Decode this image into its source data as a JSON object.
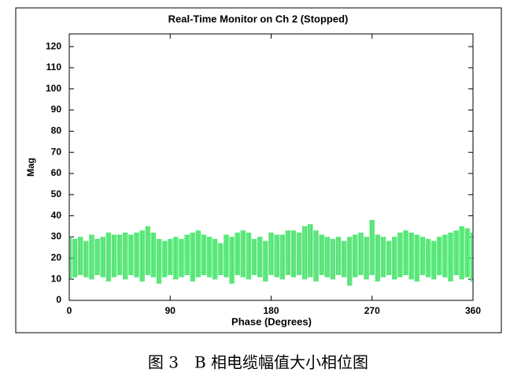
{
  "chart_data": {
    "type": "phase-range",
    "title": "Real-Time Monitor on Ch 2 (Stopped)",
    "x_label": "Phase (Degrees)",
    "y_label": "Mag",
    "caption": "图 3　B 相电缆幅值大小相位图",
    "color": "#33ee66",
    "xlim": [
      0,
      360
    ],
    "xticks": [
      0,
      90,
      180,
      270,
      360
    ],
    "ylim": [
      0,
      126
    ],
    "yticks": [
      0,
      10,
      20,
      30,
      40,
      50,
      60,
      70,
      80,
      90,
      100,
      110,
      120
    ],
    "x": [
      0,
      5,
      10,
      15,
      20,
      25,
      30,
      35,
      40,
      45,
      50,
      55,
      60,
      65,
      70,
      75,
      80,
      85,
      90,
      95,
      100,
      105,
      110,
      115,
      120,
      125,
      130,
      135,
      140,
      145,
      150,
      155,
      160,
      165,
      170,
      175,
      180,
      185,
      190,
      195,
      200,
      205,
      210,
      215,
      220,
      225,
      230,
      235,
      240,
      245,
      250,
      255,
      260,
      265,
      270,
      275,
      280,
      285,
      290,
      295,
      300,
      305,
      310,
      315,
      320,
      325,
      330,
      335,
      340,
      345,
      350,
      355,
      360
    ],
    "low": [
      10,
      11,
      12,
      11,
      10,
      12,
      11,
      9,
      11,
      12,
      10,
      12,
      11,
      9,
      12,
      11,
      8,
      11,
      12,
      10,
      11,
      12,
      9,
      11,
      12,
      11,
      10,
      12,
      11,
      8,
      12,
      11,
      10,
      12,
      11,
      9,
      12,
      11,
      10,
      12,
      11,
      12,
      10,
      11,
      9,
      12,
      11,
      10,
      12,
      11,
      7,
      11,
      12,
      10,
      12,
      9,
      11,
      12,
      10,
      11,
      12,
      10,
      9,
      12,
      11,
      10,
      12,
      11,
      9,
      12,
      10,
      11,
      9
    ],
    "high": [
      30,
      29,
      30,
      28,
      31,
      29,
      30,
      32,
      31,
      31,
      32,
      31,
      32,
      33,
      35,
      32,
      29,
      28,
      29,
      30,
      29,
      31,
      32,
      33,
      31,
      30,
      29,
      27,
      31,
      30,
      32,
      33,
      32,
      29,
      30,
      28,
      32,
      31,
      31,
      33,
      33,
      32,
      35,
      36,
      33,
      31,
      30,
      29,
      30,
      28,
      30,
      31,
      32,
      30,
      38,
      31,
      30,
      28,
      30,
      32,
      33,
      32,
      31,
      30,
      29,
      28,
      30,
      31,
      32,
      33,
      35,
      34,
      32
    ]
  }
}
